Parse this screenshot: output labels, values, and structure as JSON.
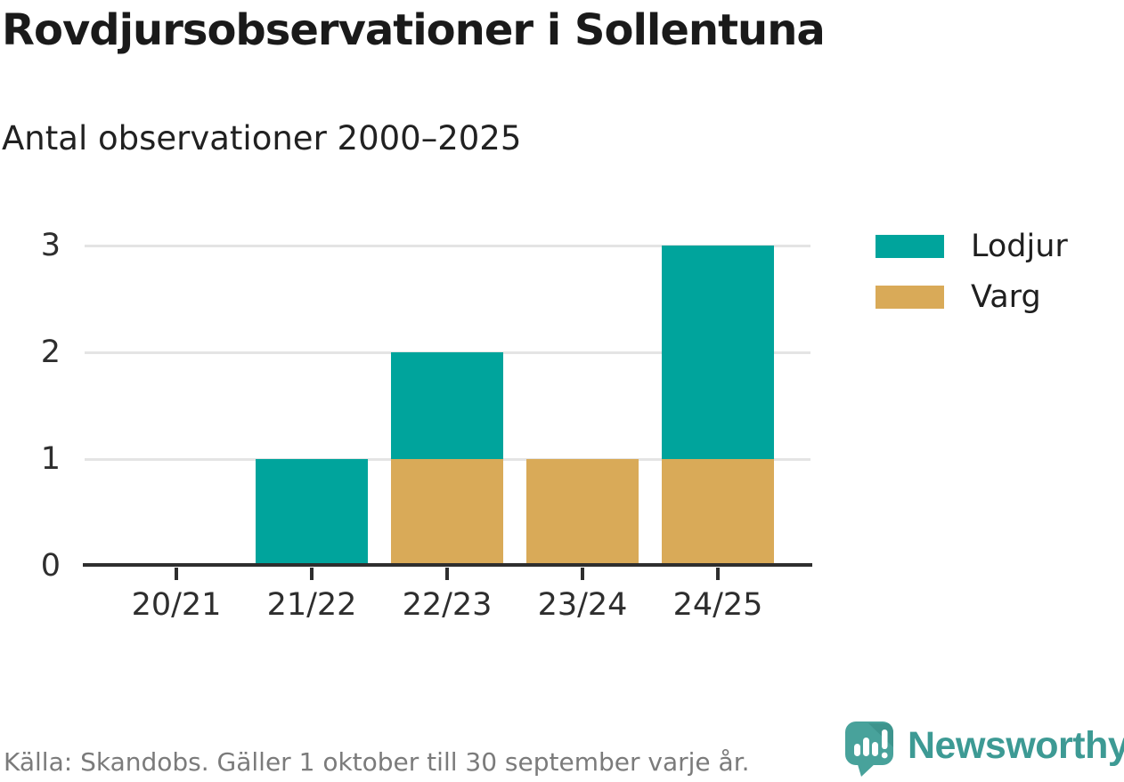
{
  "header": {
    "title": "Rovdjursobservationer i Sollentuna",
    "subtitle": "Antal observationer 2000–2025"
  },
  "chart_data": {
    "type": "bar",
    "stacked": true,
    "title": "Rovdjursobservationer i Sollentuna",
    "subtitle": "Antal observationer 2000–2025",
    "categories": [
      "20/21",
      "21/22",
      "22/23",
      "23/24",
      "24/25"
    ],
    "series": [
      {
        "name": "Lodjur",
        "color": "#00A49C",
        "values": [
          0,
          1,
          1,
          0,
          2
        ]
      },
      {
        "name": "Varg",
        "color": "#D9AA58",
        "values": [
          0,
          0,
          1,
          1,
          1
        ]
      }
    ],
    "stack_order_bottom_to_top": [
      "Varg",
      "Lodjur"
    ],
    "totals": [
      0,
      1,
      2,
      1,
      3
    ],
    "xlabel": "",
    "ylabel": "",
    "ylim": [
      0,
      3
    ],
    "yticks": [
      0,
      1,
      2,
      3
    ],
    "grid": "horizontal-gridlines-light-gray",
    "legend_position": "top-right"
  },
  "footer": {
    "source": "Källa: Skandobs. Gäller 1 oktober till 30 september varje år.",
    "brand": "Newsworthy",
    "logo_icon": "newsworthy-speech-bubble-bar-chart-icon"
  },
  "colors": {
    "lodjur_teal": "#00A49C",
    "varg_gold": "#D9AA58",
    "grid": "#E4E4E4",
    "axis_line": "#2E2E2E",
    "axis_text": "#2E2E2E",
    "title_text": "#1A1A1A",
    "footer_text": "#7B7B7B",
    "brand_teal": "#3D9A94",
    "logo_bubble": "#48A29B",
    "logo_fold": "#3D948D"
  }
}
